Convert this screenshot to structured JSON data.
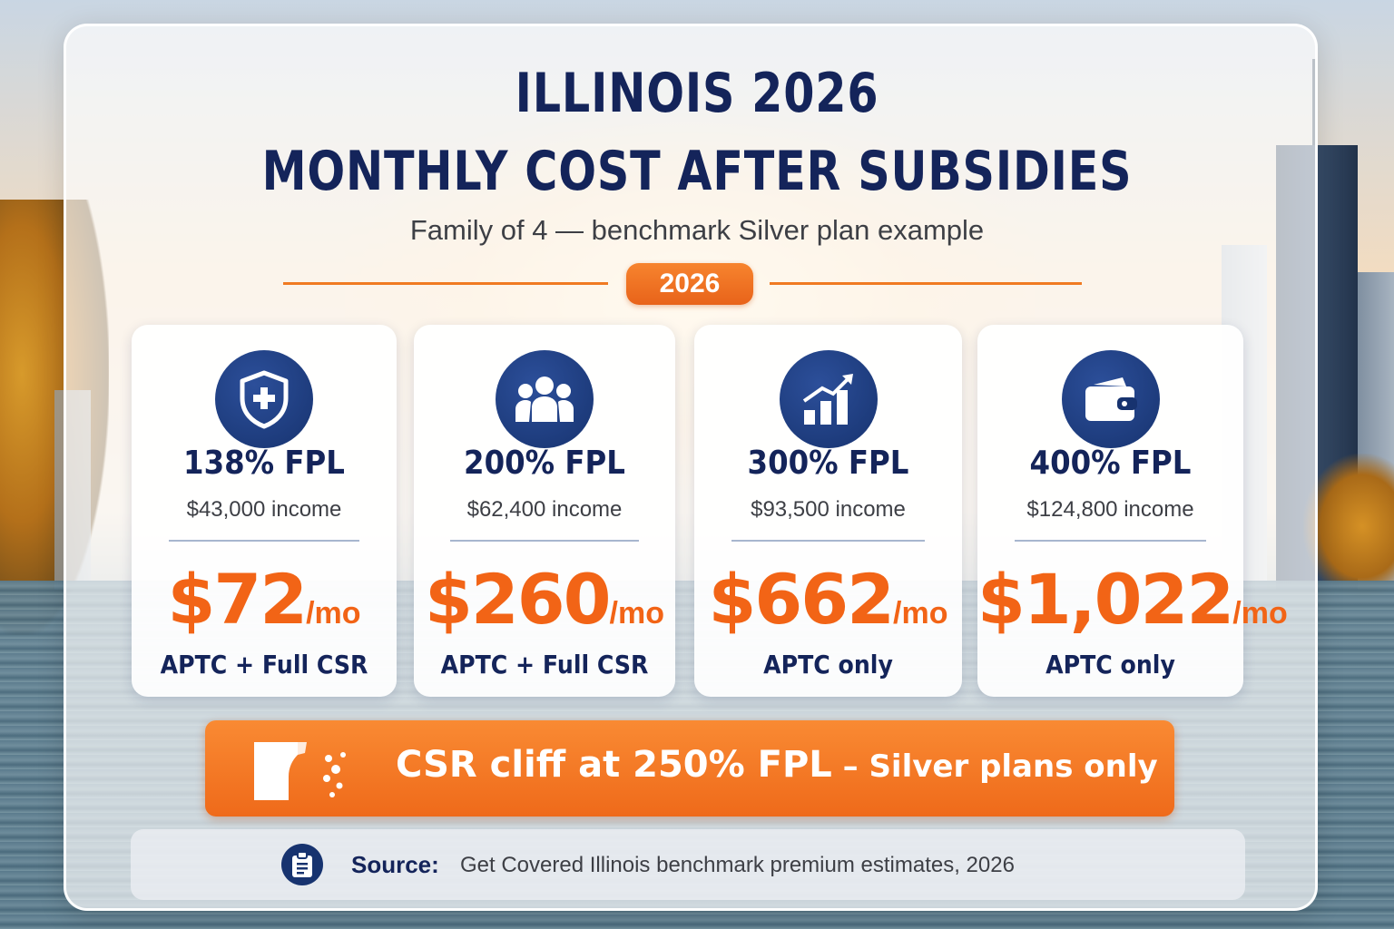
{
  "title_line1": "ILLINOIS 2026",
  "title_line2": "MONTHLY COST AFTER SUBSIDIES",
  "subtitle": "Family of 4 — benchmark Silver plan example",
  "year_badge": "2026",
  "cards": [
    {
      "icon": "shield-plus-icon",
      "fpl": "138% FPL",
      "income": "$43,000 income",
      "amount": "$72",
      "unit": "/mo",
      "note": "APTC + Full CSR"
    },
    {
      "icon": "family-group-icon",
      "fpl": "200% FPL",
      "income": "$62,400 income",
      "amount": "$260",
      "unit": "/mo",
      "note": "APTC + Full CSR"
    },
    {
      "icon": "growth-chart-icon",
      "fpl": "300% FPL",
      "income": "$93,500 income",
      "amount": "$662",
      "unit": "/mo",
      "note": "APTC only"
    },
    {
      "icon": "wallet-icon",
      "fpl": "400% FPL",
      "income": "$124,800 income",
      "amount": "$1,022",
      "unit": "/mo",
      "note": "APTC only"
    }
  ],
  "cliff": {
    "icon": "cliff-drop-icon",
    "main": "CSR cliff at 250% FPL",
    "sub": " – Silver plans only"
  },
  "source": {
    "icon": "clipboard-icon",
    "label": "Source:",
    "text": "Get Covered Illinois benchmark premium estimates, 2026"
  },
  "colors": {
    "navy": "#14245a",
    "orange": "#f26416",
    "icon_blue": "#17336f"
  }
}
